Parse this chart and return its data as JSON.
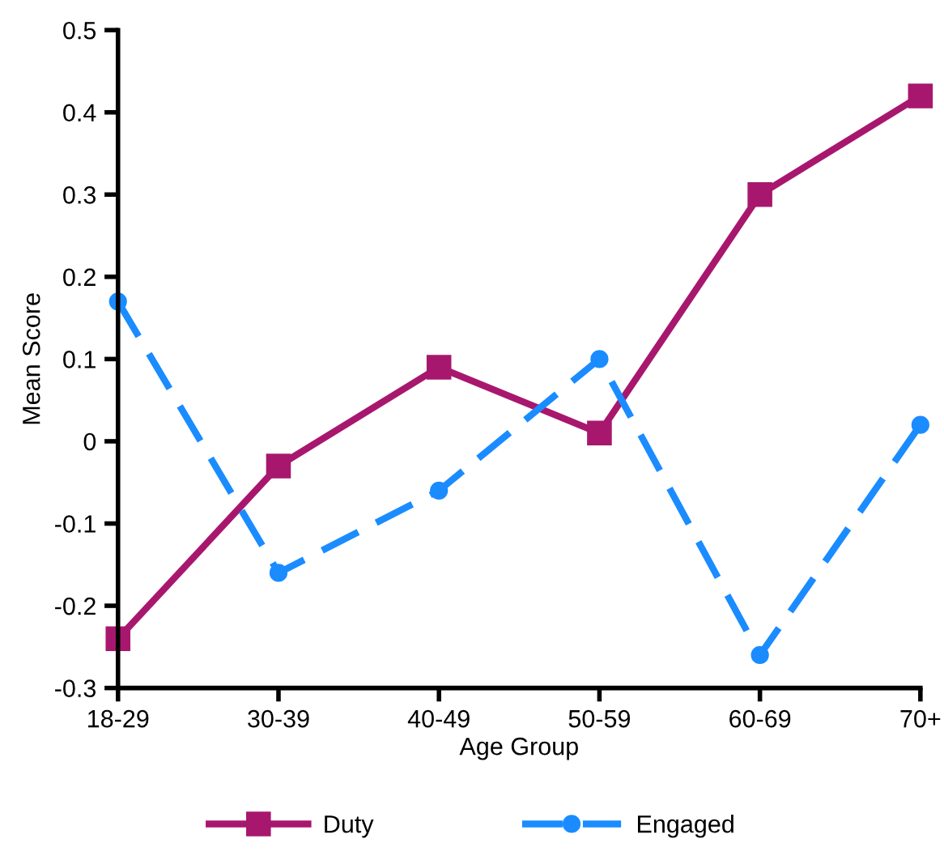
{
  "chart_data": {
    "type": "line",
    "xlabel": "Age Group",
    "ylabel": "Mean Score",
    "categories": [
      "18-29",
      "30-39",
      "40-49",
      "50-59",
      "60-69",
      "70+"
    ],
    "series": [
      {
        "name": "Duty",
        "color": "#a8176e",
        "values": [
          -0.24,
          -0.03,
          0.09,
          0.01,
          0.3,
          0.42
        ],
        "marker": "square",
        "line_style": "solid"
      },
      {
        "name": "Engaged",
        "color": "#1a8cff",
        "values": [
          0.17,
          -0.16,
          -0.06,
          0.1,
          -0.26,
          0.02
        ],
        "marker": "circle",
        "line_style": "dashed"
      }
    ],
    "ylim": [
      -0.3,
      0.5
    ],
    "yticks": [
      -0.3,
      -0.2,
      -0.1,
      0,
      0.1,
      0.2,
      0.3,
      0.4,
      0.5
    ],
    "grid": false,
    "legend": "bottom"
  }
}
